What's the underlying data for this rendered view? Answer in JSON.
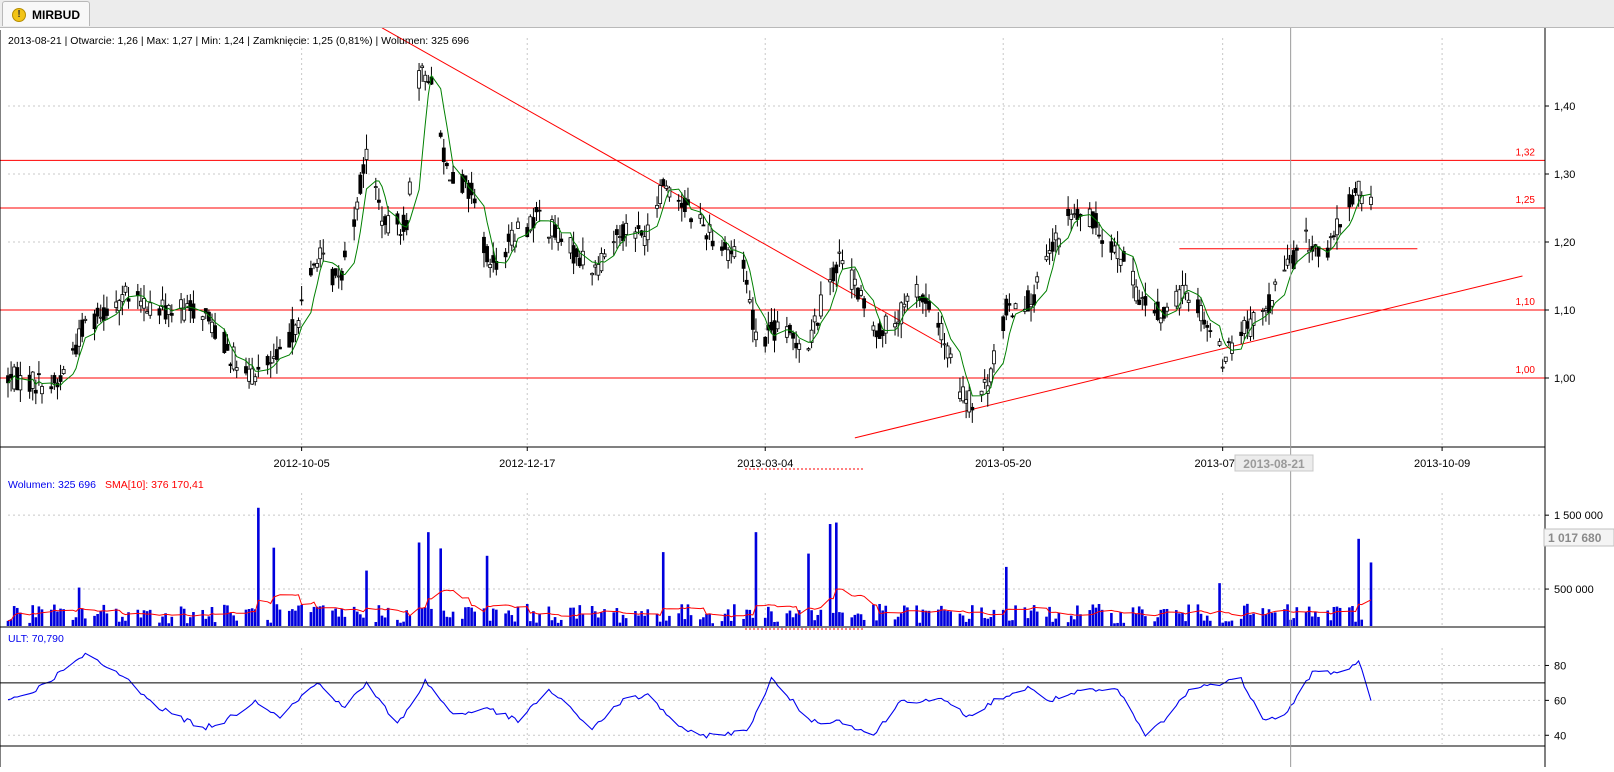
{
  "tab": {
    "title": "MIRBUD",
    "icon": "warning-icon"
  },
  "info_line": "2013-08-21 | Otwarcie: 1,26 | Max: 1,27 | Min: 1,24 | Zamknięcie: 1,25 (0,81%)  | Wolumen: 325 696",
  "volume_legend": {
    "volume": "Wolumen: 325 696",
    "sma": "SMA[10]: 376 170,41"
  },
  "ult_legend": "ULT: 70,790",
  "cursor_date": "2013-08-21",
  "cursor_volume": "1 017 680",
  "colors": {
    "grid": "#c8c8c8",
    "red": "#ff0000",
    "green": "#008000",
    "blue": "#0000ee",
    "volume": "#0000dd",
    "candle": "#000000",
    "cursor": "#9a9a9a"
  },
  "chart_data": [
    {
      "type": "candlestick",
      "title": "",
      "x_labels": [
        "2012-10-05",
        "2012-12-17",
        "2013-03-04",
        "2013-05-20",
        "2013-07-30",
        "2013-10-09"
      ],
      "y_ticks": [
        "1,00",
        "1,10",
        "1,20",
        "1,30",
        "1,40"
      ],
      "ylim": [
        0.9,
        1.5
      ],
      "grid": true,
      "date_range": [
        "2012-07-02",
        "2013-11-10"
      ],
      "overlay": "moving average (green)",
      "horizontal_lines": [
        {
          "value": 1.0,
          "label": "1,00"
        },
        {
          "value": 1.1,
          "label": "1,10"
        },
        {
          "value": 1.25,
          "label": "1,25"
        },
        {
          "value": 1.32,
          "label": "1,32"
        }
      ],
      "resistance_segment": {
        "from": "2013-07-16",
        "to": "2013-10-01",
        "value": 1.19
      },
      "trendlines": [
        {
          "from": [
            "2012-10-31",
            1.515
          ],
          "to": [
            "2013-04-30",
            1.05
          ]
        },
        {
          "from": [
            "2013-04-02",
            0.912
          ],
          "to": [
            "2013-11-04",
            1.15
          ]
        }
      ],
      "price_path": [
        [
          "2012-07-02",
          1.0
        ],
        [
          "2012-07-18",
          0.99
        ],
        [
          "2012-07-27",
          1.08
        ],
        [
          "2012-08-08",
          1.12
        ],
        [
          "2012-08-20",
          1.1
        ],
        [
          "2012-09-03",
          1.1
        ],
        [
          "2012-09-17",
          1.0
        ],
        [
          "2012-09-28",
          1.03
        ],
        [
          "2012-10-04",
          1.09
        ],
        [
          "2012-10-10",
          1.18
        ],
        [
          "2012-10-17",
          1.14
        ],
        [
          "2012-10-22",
          1.24
        ],
        [
          "2012-10-26",
          1.33
        ],
        [
          "2012-11-01",
          1.22
        ],
        [
          "2012-11-08",
          1.23
        ],
        [
          "2012-11-12",
          1.44
        ],
        [
          "2012-11-15",
          1.45
        ],
        [
          "2012-11-21",
          1.31
        ],
        [
          "2012-11-29",
          1.27
        ],
        [
          "2012-12-05",
          1.16
        ],
        [
          "2012-12-13",
          1.21
        ],
        [
          "2012-12-21",
          1.24
        ],
        [
          "2012-12-28",
          1.2
        ],
        [
          "2013-01-08",
          1.16
        ],
        [
          "2013-01-16",
          1.22
        ],
        [
          "2013-01-25",
          1.21
        ],
        [
          "2013-01-30",
          1.29
        ],
        [
          "2013-02-07",
          1.25
        ],
        [
          "2013-02-15",
          1.21
        ],
        [
          "2013-02-25",
          1.17
        ],
        [
          "2013-03-01",
          1.06
        ],
        [
          "2013-03-08",
          1.07
        ],
        [
          "2013-03-18",
          1.05
        ],
        [
          "2013-03-25",
          1.15
        ],
        [
          "2013-03-29",
          1.18
        ],
        [
          "2013-04-08",
          1.07
        ],
        [
          "2013-04-15",
          1.08
        ],
        [
          "2013-04-22",
          1.13
        ],
        [
          "2013-04-29",
          1.08
        ],
        [
          "2013-05-06",
          0.98
        ],
        [
          "2013-05-10",
          0.96
        ],
        [
          "2013-05-15",
          0.99
        ],
        [
          "2013-05-21",
          1.1
        ],
        [
          "2013-05-30",
          1.12
        ],
        [
          "2013-06-05",
          1.19
        ],
        [
          "2013-06-11",
          1.24
        ],
        [
          "2013-06-18",
          1.23
        ],
        [
          "2013-06-26",
          1.19
        ],
        [
          "2013-07-03",
          1.12
        ],
        [
          "2013-07-10",
          1.09
        ],
        [
          "2013-07-18",
          1.13
        ],
        [
          "2013-07-23",
          1.1
        ],
        [
          "2013-07-30",
          1.03
        ],
        [
          "2013-08-05",
          1.07
        ],
        [
          "2013-08-12",
          1.09
        ],
        [
          "2013-08-19",
          1.16
        ],
        [
          "2013-08-26",
          1.2
        ],
        [
          "2013-09-02",
          1.18
        ],
        [
          "2013-09-06",
          1.23
        ],
        [
          "2013-09-12",
          1.28
        ],
        [
          "2013-09-16",
          1.25
        ]
      ]
    },
    {
      "type": "bar",
      "title": "",
      "series": [
        {
          "name": "Wolumen",
          "kind": "bar"
        },
        {
          "name": "SMA[10]",
          "kind": "line"
        }
      ],
      "y_ticks": [
        "500 000",
        "1 500 000"
      ],
      "ylim": [
        0,
        1800000
      ],
      "typical_volume": 120000,
      "peaks": [
        [
          "2012-07-25",
          520000
        ],
        [
          "2012-09-21",
          1600000
        ],
        [
          "2012-09-26",
          1060000
        ],
        [
          "2012-10-26",
          750000
        ],
        [
          "2012-11-12",
          1130000
        ],
        [
          "2012-11-15",
          1270000
        ],
        [
          "2012-11-19",
          1050000
        ],
        [
          "2012-12-04",
          950000
        ],
        [
          "2013-01-30",
          1000000
        ],
        [
          "2013-03-01",
          1270000
        ],
        [
          "2013-03-18",
          980000
        ],
        [
          "2013-03-25",
          1380000
        ],
        [
          "2013-03-27",
          1400000
        ],
        [
          "2013-05-21",
          800000
        ],
        [
          "2013-07-29",
          580000
        ],
        [
          "2013-09-12",
          1180000
        ],
        [
          "2013-09-16",
          860000
        ]
      ],
      "sma_last": 376170.41
    },
    {
      "type": "line",
      "title": "",
      "series": [
        {
          "name": "ULT"
        }
      ],
      "y_ticks": [
        "40",
        "60",
        "80"
      ],
      "ylim": [
        35,
        90
      ],
      "level_line": 70,
      "path": [
        [
          "2012-07-02",
          60
        ],
        [
          "2012-07-11",
          66
        ],
        [
          "2012-07-27",
          86
        ],
        [
          "2012-08-08",
          74
        ],
        [
          "2012-08-20",
          56
        ],
        [
          "2012-09-03",
          44
        ],
        [
          "2012-09-10",
          48
        ],
        [
          "2012-09-20",
          60
        ],
        [
          "2012-09-28",
          51
        ],
        [
          "2012-10-10",
          70
        ],
        [
          "2012-10-19",
          56
        ],
        [
          "2012-10-26",
          70
        ],
        [
          "2012-11-05",
          46
        ],
        [
          "2012-11-14",
          71
        ],
        [
          "2012-11-23",
          52
        ],
        [
          "2012-12-05",
          55
        ],
        [
          "2012-12-14",
          48
        ],
        [
          "2012-12-24",
          66
        ],
        [
          "2013-01-07",
          44
        ],
        [
          "2013-01-17",
          60
        ],
        [
          "2013-01-25",
          63
        ],
        [
          "2013-02-06",
          42
        ],
        [
          "2013-02-13",
          40
        ],
        [
          "2013-02-26",
          42
        ],
        [
          "2013-03-06",
          72
        ],
        [
          "2013-03-19",
          48
        ],
        [
          "2013-03-29",
          48
        ],
        [
          "2013-04-08",
          40
        ],
        [
          "2013-04-17",
          60
        ],
        [
          "2013-04-30",
          60
        ],
        [
          "2013-05-10",
          50
        ],
        [
          "2013-05-17",
          60
        ],
        [
          "2013-05-28",
          67
        ],
        [
          "2013-06-04",
          60
        ],
        [
          "2013-06-14",
          65
        ],
        [
          "2013-06-26",
          66
        ],
        [
          "2013-07-05",
          40
        ],
        [
          "2013-07-12",
          50
        ],
        [
          "2013-07-19",
          66
        ],
        [
          "2013-07-29",
          70
        ],
        [
          "2013-08-05",
          72
        ],
        [
          "2013-08-12",
          50
        ],
        [
          "2013-08-19",
          51
        ],
        [
          "2013-08-28",
          76
        ],
        [
          "2013-09-06",
          76
        ],
        [
          "2013-09-12",
          82
        ],
        [
          "2013-09-16",
          61
        ]
      ]
    }
  ]
}
